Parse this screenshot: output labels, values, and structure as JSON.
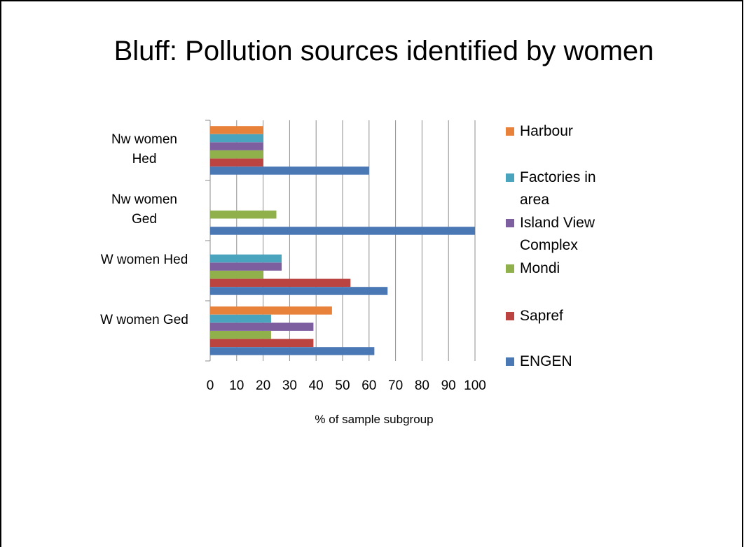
{
  "chart_data": {
    "type": "bar",
    "orientation": "horizontal",
    "title": "Bluff: Pollution sources identified by women",
    "xlabel": "% of sample subgroup",
    "categories": [
      "Nw women Hed",
      "Nw women Ged",
      "W women Hed",
      "W women Ged"
    ],
    "series": [
      {
        "name": "Harbour",
        "color": "#e8823a",
        "values": [
          20,
          0,
          0,
          46
        ]
      },
      {
        "name": "Factories in area",
        "color": "#4aa4bd",
        "values": [
          20,
          0,
          27,
          23
        ]
      },
      {
        "name": "Island View Complex",
        "color": "#7d5fa0",
        "values": [
          20,
          0,
          27,
          39
        ]
      },
      {
        "name": "Mondi",
        "color": "#8fb04a",
        "values": [
          20,
          25,
          20,
          23
        ]
      },
      {
        "name": "Sapref",
        "color": "#bb4441",
        "values": [
          20,
          0,
          53,
          39
        ]
      },
      {
        "name": "ENGEN",
        "color": "#4a78b5",
        "values": [
          60,
          100,
          67,
          62
        ]
      }
    ],
    "xlim": [
      0,
      100
    ],
    "xticks": [
      0,
      10,
      20,
      30,
      40,
      50,
      60,
      70,
      80,
      90,
      100
    ],
    "grid": true,
    "legend": "right"
  }
}
